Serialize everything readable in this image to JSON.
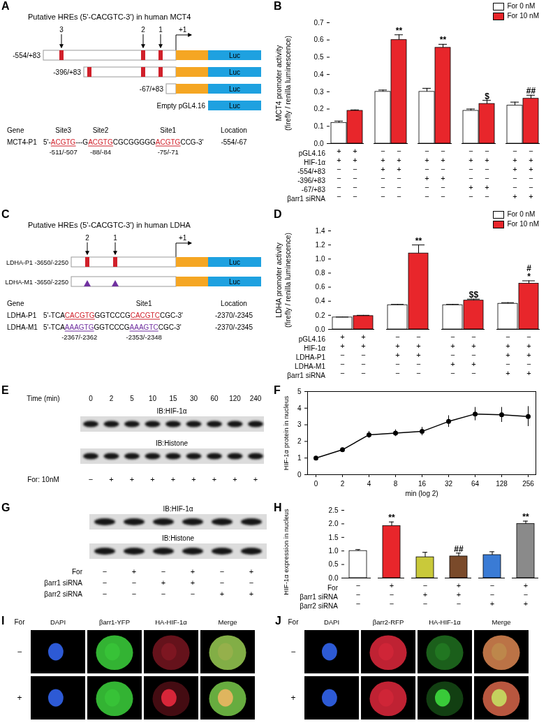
{
  "chart_data": [
    {
      "panel": "B",
      "type": "bar",
      "y_label": "MCT4 promoter activity\n(firefly / renilla luminescence)",
      "categories": [
        null,
        null,
        null,
        null,
        null
      ],
      "series": [
        {
          "name": "For 0 nM",
          "color": "#ffffff",
          "values": [
            0.12,
            0.3,
            0.3,
            0.19,
            0.22
          ],
          "errors": [
            0.01,
            0.01,
            0.02,
            0.01,
            0.02
          ]
        },
        {
          "name": "For 10 nM",
          "color": "#e8262b",
          "values": [
            0.19,
            0.6,
            0.555,
            0.23,
            0.26
          ],
          "errors": [
            0.005,
            0.03,
            0.02,
            0.02,
            0.02
          ],
          "annotations": [
            null,
            "**",
            "**",
            "$",
            "##"
          ]
        }
      ],
      "ylim": [
        0,
        0.7
      ],
      "yticks": [
        {
          "value": 0,
          "label": "0.0"
        },
        0.1,
        0.2,
        0.3,
        0.4,
        0.5,
        0.6,
        0.7
      ],
      "legend": "top-right",
      "tick_labels": "y",
      "conditions": [
        {
          "label": "pGL4.16",
          "marks": [
            "+",
            "+",
            "−",
            "−",
            "−",
            "−",
            "−",
            "−",
            "−",
            "−"
          ]
        },
        {
          "label": "HIF-1α",
          "marks": [
            "+",
            "+",
            "+",
            "+",
            "+",
            "+",
            "+",
            "+",
            "+",
            "+"
          ]
        },
        {
          "label": "-554/+83",
          "marks": [
            "−",
            "−",
            "+",
            "+",
            "−",
            "−",
            "−",
            "−",
            "+",
            "+"
          ]
        },
        {
          "label": "-396/+83",
          "marks": [
            "−",
            "−",
            "−",
            "−",
            "+",
            "+",
            "−",
            "−",
            "−",
            "−"
          ]
        },
        {
          "label": "-67/+83",
          "marks": [
            "−",
            "−",
            "−",
            "−",
            "−",
            "−",
            "+",
            "+",
            "−",
            "−"
          ]
        },
        {
          "label": "βarr1 siRNA",
          "marks": [
            "−",
            "−",
            "−",
            "−",
            "−",
            "−",
            "−",
            "−",
            "+",
            "+"
          ]
        }
      ]
    },
    {
      "panel": "D",
      "type": "bar",
      "y_label": "LDHA promoter activity\n(firefly / renilla luminescence)",
      "categories": [
        null,
        null,
        null,
        null
      ],
      "series": [
        {
          "name": "For 0 nM",
          "color": "#ffffff",
          "values": [
            0.17,
            0.345,
            0.345,
            0.365
          ],
          "errors": [
            0.005,
            0.01,
            0.01,
            0.015
          ]
        },
        {
          "name": "For 10 nM",
          "color": "#e8262b",
          "values": [
            0.19,
            1.08,
            0.41,
            0.65
          ],
          "errors": [
            0.01,
            0.12,
            0.02,
            0.04
          ],
          "annotations": [
            null,
            "**",
            "$$",
            "#\n*"
          ]
        }
      ],
      "ylim": [
        0,
        1.4
      ],
      "yticks": [
        {
          "value": 0,
          "label": "0.0"
        },
        0.2,
        0.4,
        0.6,
        0.8,
        {
          "value": 1,
          "label": "1.0"
        },
        1.2,
        1.4
      ],
      "legend": "top-right",
      "tick_labels": "y",
      "conditions": [
        {
          "label": "pGL4.16",
          "marks": [
            "+",
            "+",
            "−",
            "−",
            "−",
            "−",
            "−",
            "−"
          ]
        },
        {
          "label": "HIF-1α",
          "marks": [
            "+",
            "+",
            "+",
            "+",
            "+",
            "+",
            "+",
            "+"
          ]
        },
        {
          "label": "LDHA-P1",
          "marks": [
            "−",
            "−",
            "+",
            "+",
            "−",
            "−",
            "+",
            "+"
          ]
        },
        {
          "label": "LDHA-M1",
          "marks": [
            "−",
            "−",
            "−",
            "−",
            "+",
            "+",
            "−",
            "−"
          ]
        },
        {
          "label": "βarr1 siRNA",
          "marks": [
            "−",
            "−",
            "−",
            "−",
            "−",
            "−",
            "+",
            "+"
          ]
        }
      ]
    },
    {
      "panel": "F",
      "type": "line",
      "x_label": "min (log 2)",
      "y_label": "HIF-1α protein in nucleus",
      "categories": [
        "0",
        "2",
        "4",
        "8",
        "16",
        "32",
        "64",
        "128",
        "256"
      ],
      "values": [
        1.0,
        1.5,
        2.4,
        2.5,
        2.6,
        3.2,
        3.65,
        3.6,
        3.5
      ],
      "errors": [
        0,
        0.03,
        0.2,
        0.2,
        0.25,
        0.35,
        0.4,
        0.45,
        0.6
      ],
      "ylim": [
        0,
        5
      ],
      "yticks": [
        0,
        1,
        2,
        3,
        4,
        5
      ],
      "color": "#000000",
      "marker": "circle"
    },
    {
      "panel": "H",
      "type": "bar",
      "y_label": "HIF-1α expression in nucleus",
      "categories": [
        null,
        null,
        null,
        null,
        null,
        null
      ],
      "values": [
        1.0,
        1.92,
        0.77,
        0.8,
        0.85,
        2.0
      ],
      "errors": [
        0.05,
        0.15,
        0.18,
        0.12,
        0.12,
        0.1
      ],
      "annotations": [
        null,
        "**",
        null,
        "##",
        null,
        "**"
      ],
      "colors": [
        "#ffffff",
        "#e8262b",
        "#c9c93a",
        "#7a4a2a",
        "#3a7bd5",
        "#8a8a8a"
      ],
      "ylim": [
        0,
        2.5
      ],
      "yticks": [
        {
          "value": 0,
          "label": "0.0"
        },
        0.5,
        {
          "value": 1,
          "label": "1.0"
        },
        1.5,
        {
          "value": 2,
          "label": "2.0"
        },
        2.5
      ],
      "tick_labels": "y",
      "conditions": [
        {
          "label": "For",
          "marks": [
            "−",
            "+",
            "−",
            "+",
            "−",
            "+"
          ]
        },
        {
          "label": "βarr1 siRNA",
          "marks": [
            "−",
            "−",
            "+",
            "+",
            "−",
            "−"
          ]
        },
        {
          "label": "βarr2 siRNA",
          "marks": [
            "−",
            "−",
            "−",
            "−",
            "+",
            "+"
          ]
        }
      ]
    }
  ],
  "diagrams": [
    {
      "panel": "A",
      "title": "Putative HREs (5'-CACGTC-3') in human MCT4",
      "sites": [
        "3",
        "2",
        "1"
      ],
      "start": "+1",
      "reporter": "Luc",
      "constructs": [
        "-554/+83",
        "-396/+83",
        "-67/+83",
        "Empty pGL4.16"
      ],
      "table": {
        "headers": {
          "gene": "Gene",
          "sites": [
            "Site3",
            "Site2",
            "Site1"
          ],
          "location": "Location"
        },
        "rows": [
          {
            "gene": "MCT4-P1",
            "color": "#d0202a",
            "sequence": [
              {
                "t": "5'-"
              },
              {
                "t": "ACGTG",
                "hl": true
              },
              {
                "t": "---G"
              },
              {
                "t": "ACGTG",
                "hl": true
              },
              {
                "t": "CGCGGGGG"
              },
              {
                "t": "ACGTG",
                "hl": true
              },
              {
                "t": "CCG-3'"
              }
            ],
            "location": "-554/-67"
          }
        ],
        "site_positions": [
          "-511/-507",
          "-88/-84",
          "-75/-71"
        ]
      }
    },
    {
      "panel": "C",
      "title": "Putative HREs (5'-CACGTC-3') in human LDHA",
      "sites": [
        "2",
        "1"
      ],
      "start": "+1",
      "reporter": "Luc",
      "constructs": [
        "LDHA-P1 -3650/-2250",
        "LDHA-M1 -3650/-2250"
      ],
      "table": {
        "headers": {
          "gene": "Gene",
          "sites": [
            null,
            "Site1"
          ],
          "location": "Location"
        },
        "rows": [
          {
            "gene": "LDHA-P1",
            "color": "#d0202a",
            "sequence": [
              {
                "t": "5'-TCA"
              },
              {
                "t": "CACGTG",
                "hl": true
              },
              {
                "t": "GGTCCCG"
              },
              {
                "t": "CACGTC",
                "hl": true
              },
              {
                "t": "CGC-3'"
              }
            ],
            "location": "-2370/-2345"
          },
          {
            "gene": "LDHA-M1",
            "color": "#7030a0",
            "sequence": [
              {
                "t": "5'-TCA"
              },
              {
                "t": "AAAGTG",
                "hl": true
              },
              {
                "t": "GGTCCCG"
              },
              {
                "t": "AAAGTC",
                "hl": true
              },
              {
                "t": "CGC-3'"
              }
            ],
            "location": "-2370/-2345"
          }
        ],
        "site_positions": [
          "-2367/-2362",
          "-2353/-2348"
        ]
      }
    },
    {
      "panel": "E",
      "time_label": "Time (min)",
      "lanes": [
        "0",
        "2",
        "5",
        "10",
        "15",
        "30",
        "60",
        "120",
        "240"
      ],
      "blots": [
        "IB:HIF-1α",
        "IB:Histone"
      ],
      "treatment": {
        "label": "For: 10nM",
        "marks": [
          "−",
          "+",
          "+",
          "+",
          "+",
          "+",
          "+",
          "+",
          "+"
        ]
      }
    },
    {
      "panel": "G",
      "blots": [
        "IB:HIF-1α",
        "IB:Histone"
      ],
      "conditions": [
        {
          "label": "For",
          "marks": [
            "−",
            "+",
            "−",
            "+",
            "−",
            "+"
          ]
        },
        {
          "label": "βarr1 siRNA",
          "marks": [
            "−",
            "−",
            "+",
            "+",
            "−",
            "−"
          ]
        },
        {
          "label": "βarr2 siRNA",
          "marks": [
            "−",
            "−",
            "−",
            "−",
            "+",
            "+"
          ]
        }
      ]
    },
    {
      "panel": "I",
      "treatment": "For",
      "channels": [
        "DAPI",
        "βarr1-YFP",
        "HA-HIF-1α",
        "Merge"
      ],
      "rows": [
        "−",
        "+"
      ]
    },
    {
      "panel": "J",
      "treatment": "For",
      "channels": [
        "DAPI",
        "βarr2-RFP",
        "HA-HIF-1α",
        "Merge"
      ],
      "rows": [
        "−",
        "+"
      ]
    }
  ]
}
